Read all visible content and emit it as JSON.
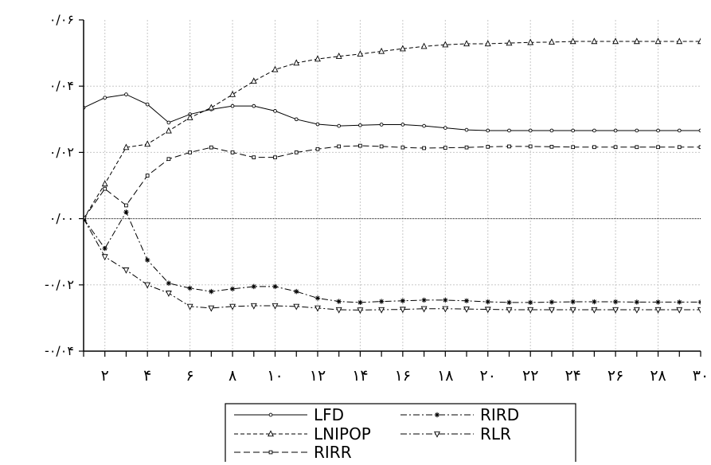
{
  "chart_data": {
    "type": "line",
    "title": "",
    "xlabel": "",
    "ylabel": "",
    "x": [
      1,
      2,
      3,
      4,
      5,
      6,
      7,
      8,
      9,
      10,
      11,
      12,
      13,
      14,
      15,
      16,
      17,
      18,
      19,
      20,
      21,
      22,
      23,
      24,
      25,
      26,
      27,
      28,
      29,
      30
    ],
    "xlim": [
      1,
      30
    ],
    "ylim": [
      -0.04,
      0.06
    ],
    "x_ticks": [
      {
        "value": 2,
        "label": "۲"
      },
      {
        "value": 4,
        "label": "۴"
      },
      {
        "value": 6,
        "label": "۶"
      },
      {
        "value": 8,
        "label": "۸"
      },
      {
        "value": 10,
        "label": "۱۰"
      },
      {
        "value": 12,
        "label": "۱۲"
      },
      {
        "value": 14,
        "label": "۱۴"
      },
      {
        "value": 16,
        "label": "۱۶"
      },
      {
        "value": 18,
        "label": "۱۸"
      },
      {
        "value": 20,
        "label": "۲۰"
      },
      {
        "value": 22,
        "label": "۲۲"
      },
      {
        "value": 24,
        "label": "۲۴"
      },
      {
        "value": 26,
        "label": "۲۶"
      },
      {
        "value": 28,
        "label": "۲۸"
      },
      {
        "value": 30,
        "label": "۳۰"
      }
    ],
    "y_ticks": [
      {
        "value": 0.06,
        "label": "۰/۰۶"
      },
      {
        "value": 0.04,
        "label": "۰/۰۴"
      },
      {
        "value": 0.02,
        "label": "۰/۰۲"
      },
      {
        "value": 0.0,
        "label": "۰/۰۰"
      },
      {
        "value": -0.02,
        "label": "-۰/۰۲"
      },
      {
        "value": -0.04,
        "label": "-۰/۰۴"
      }
    ],
    "grid": true,
    "legend_position": "bottom",
    "series": [
      {
        "name": "LFD",
        "marker": "circle",
        "dash": "solid",
        "values": [
          0.0335,
          0.0365,
          0.0375,
          0.0345,
          0.029,
          0.0315,
          0.033,
          0.034,
          0.034,
          0.0325,
          0.03,
          0.0285,
          0.028,
          0.0282,
          0.0284,
          0.0284,
          0.028,
          0.0274,
          0.0268,
          0.0266,
          0.0266,
          0.0266,
          0.0266,
          0.0266,
          0.0266,
          0.0266,
          0.0266,
          0.0266,
          0.0266,
          0.0266
        ]
      },
      {
        "name": "LNIPOP",
        "marker": "triangle-up",
        "dash": "dashed",
        "values": [
          0.0,
          0.0105,
          0.0215,
          0.0225,
          0.0265,
          0.0305,
          0.0335,
          0.0375,
          0.0415,
          0.045,
          0.047,
          0.0482,
          0.049,
          0.0497,
          0.0505,
          0.0513,
          0.052,
          0.0525,
          0.0528,
          0.0528,
          0.053,
          0.0532,
          0.0533,
          0.0535,
          0.0535,
          0.0535,
          0.0535,
          0.0535,
          0.0535,
          0.0535
        ]
      },
      {
        "name": "RIRR",
        "marker": "square",
        "dash": "longdash",
        "values": [
          0.0,
          0.009,
          0.004,
          0.013,
          0.018,
          0.02,
          0.0215,
          0.02,
          0.0185,
          0.0185,
          0.02,
          0.021,
          0.0218,
          0.022,
          0.0218,
          0.0215,
          0.0213,
          0.0214,
          0.0215,
          0.0217,
          0.0218,
          0.0218,
          0.0217,
          0.0216,
          0.0216,
          0.0216,
          0.0216,
          0.0216,
          0.0216,
          0.0216
        ]
      },
      {
        "name": "RIRD",
        "marker": "star",
        "dash": "dashdot",
        "values": [
          0.0,
          -0.009,
          0.002,
          -0.0125,
          -0.0195,
          -0.021,
          -0.022,
          -0.0212,
          -0.0205,
          -0.0205,
          -0.022,
          -0.024,
          -0.025,
          -0.0253,
          -0.025,
          -0.0248,
          -0.0246,
          -0.0246,
          -0.0248,
          -0.0251,
          -0.0253,
          -0.0253,
          -0.0252,
          -0.0251,
          -0.0251,
          -0.0251,
          -0.0252,
          -0.0252,
          -0.0252,
          -0.0252
        ]
      },
      {
        "name": "RLR",
        "marker": "triangle-down",
        "dash": "dashdot",
        "values": [
          0.0,
          -0.0115,
          -0.0155,
          -0.02,
          -0.0225,
          -0.0265,
          -0.027,
          -0.0265,
          -0.0263,
          -0.0263,
          -0.0265,
          -0.027,
          -0.0275,
          -0.0276,
          -0.0275,
          -0.0274,
          -0.0272,
          -0.0272,
          -0.0273,
          -0.0274,
          -0.0275,
          -0.0275,
          -0.0275,
          -0.0275,
          -0.0275,
          -0.0275,
          -0.0275,
          -0.0275,
          -0.0275,
          -0.0275
        ]
      }
    ]
  }
}
